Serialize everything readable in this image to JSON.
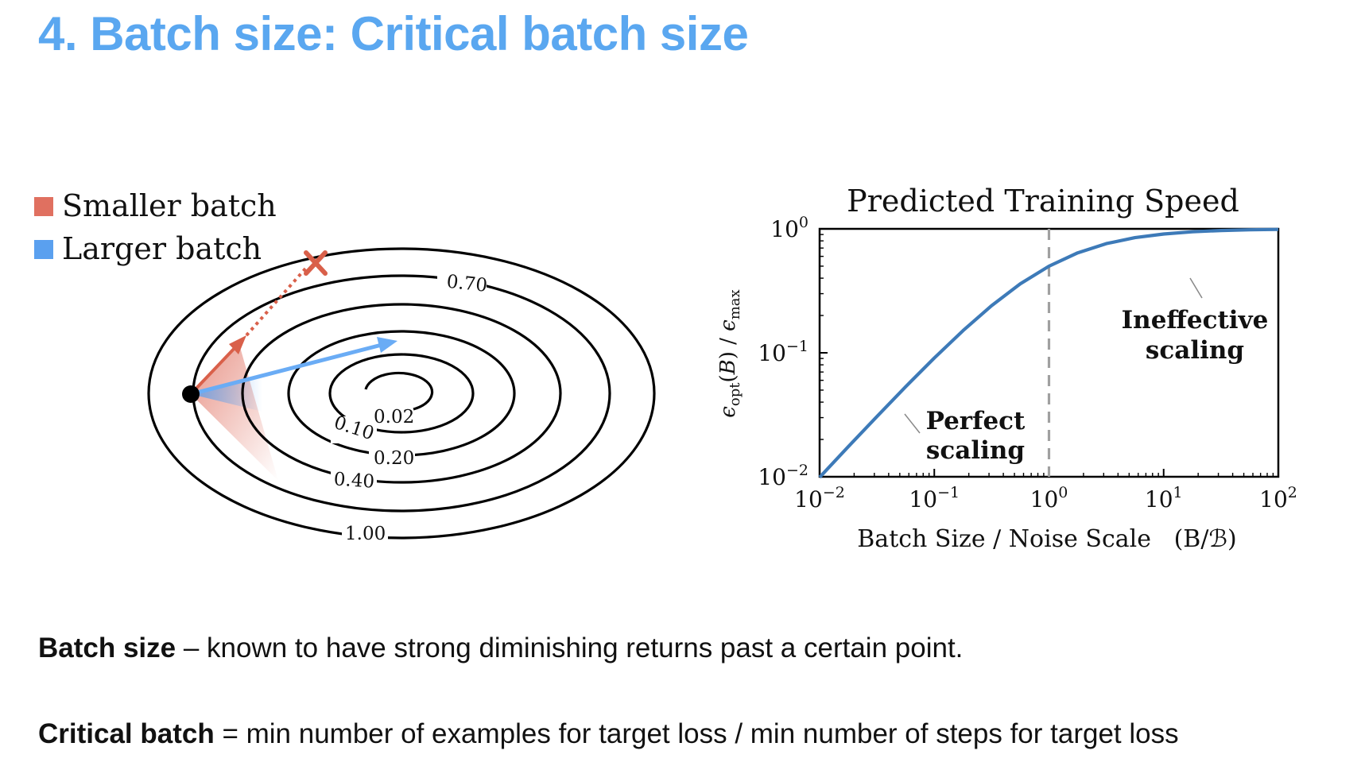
{
  "slide": {
    "title": "4. Batch size: Critical batch size"
  },
  "contour_figure": {
    "legend": [
      {
        "label": "Smaller batch",
        "color": "#e07060"
      },
      {
        "label": "Larger batch",
        "color": "#5aa0ef"
      }
    ],
    "contour_labels": [
      "0.02",
      "0.10",
      "0.20",
      "0.40",
      "0.70",
      "1.00"
    ],
    "marker_icon": "x-mark-icon",
    "colors": {
      "smaller": "#d9604a",
      "larger": "#6aacf5",
      "contour": "#000000"
    }
  },
  "chart_data": {
    "type": "line",
    "title": "Predicted Training Speed",
    "xlabel": "Batch Size / Noise Scale   (B/ℬ)",
    "ylabel": "ϵ_opt(B) / ϵ_max",
    "xscale": "log",
    "yscale": "log",
    "xlim": [
      0.01,
      100
    ],
    "ylim": [
      0.01,
      1
    ],
    "x_ticks": [
      {
        "base": "10",
        "exp": "−2"
      },
      {
        "base": "10",
        "exp": "−1"
      },
      {
        "base": "10",
        "exp": "0"
      },
      {
        "base": "10",
        "exp": "1"
      },
      {
        "base": "10",
        "exp": "2"
      }
    ],
    "y_ticks": [
      {
        "base": "10",
        "exp": "−2"
      },
      {
        "base": "10",
        "exp": "−1"
      },
      {
        "base": "10",
        "exp": "0"
      }
    ],
    "series": [
      {
        "color": "#3d7ab8",
        "x": [
          0.01,
          0.0178,
          0.0316,
          0.0562,
          0.1,
          0.178,
          0.316,
          0.562,
          1,
          1.78,
          3.16,
          5.62,
          10,
          17.8,
          31.6,
          56.2,
          100
        ],
        "y": [
          0.0099,
          0.0175,
          0.0306,
          0.0532,
          0.0909,
          0.151,
          0.24,
          0.36,
          0.5,
          0.64,
          0.76,
          0.849,
          0.909,
          0.947,
          0.969,
          0.983,
          0.99
        ]
      }
    ],
    "vline_x": 1,
    "annotations": [
      {
        "lines": [
          "Perfect",
          "scaling"
        ],
        "x": 0.03,
        "y": 0.015
      },
      {
        "lines": [
          "Ineffective",
          "scaling"
        ],
        "x": 10,
        "y": 0.13
      }
    ],
    "grid": false
  },
  "text": {
    "line1_term": "Batch size",
    "line1_rest": " – known to have strong diminishing returns past a certain point.",
    "line2_term": "Critical batch",
    "line2_rest": " = min number of examples for target loss / min number of steps for target loss"
  }
}
